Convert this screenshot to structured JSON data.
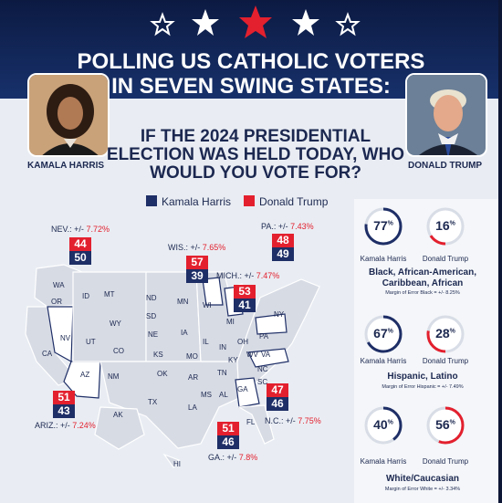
{
  "header": {
    "title_line1": "POLLING US CATHOLIC VOTERS",
    "title_line2": "IN SEVEN SWING STATES:"
  },
  "candidates": {
    "left_name": "KAMALA HARRIS",
    "right_name": "DONALD TRUMP"
  },
  "question": {
    "line1": "IF THE 2024 PRESIDENTIAL",
    "line2": "ELECTION WAS HELD TODAY, WHO",
    "line3": "WOULD YOU VOTE FOR?"
  },
  "legend": {
    "harris": "Kamala Harris",
    "trump": "Donald Trump",
    "harris_color": "#1e2e66",
    "trump_color": "#e3202e"
  },
  "states": {
    "nev": {
      "label": "NEV.: +/-",
      "moe": "7.72%",
      "trump": "44",
      "harris": "50"
    },
    "wis": {
      "label": "WIS.: +/-",
      "moe": "7.65%",
      "trump": "57",
      "harris": "39"
    },
    "pa": {
      "label": "PA.: +/-",
      "moe": "7.43%",
      "trump": "48",
      "harris": "49"
    },
    "mich": {
      "label": "MICH.: +/-",
      "moe": "7.47%",
      "trump": "53",
      "harris": "41"
    },
    "ariz": {
      "label": "ARIZ.: +/-",
      "moe": "7.24%",
      "trump": "51",
      "harris": "43"
    },
    "nc": {
      "label": "N.C.: +/-",
      "moe": "7.75%",
      "trump": "47",
      "harris": "46"
    },
    "ga": {
      "label": "GA.: +/-",
      "moe": "7.8%",
      "trump": "51",
      "harris": "46"
    }
  },
  "map_labels": [
    "WA",
    "OR",
    "CA",
    "NV",
    "ID",
    "MT",
    "WY",
    "UT",
    "AZ",
    "CO",
    "NM",
    "ND",
    "SD",
    "NE",
    "KS",
    "OK",
    "TX",
    "MN",
    "IA",
    "MO",
    "AR",
    "LA",
    "WI",
    "IL",
    "MI",
    "IN",
    "OH",
    "KY",
    "TN",
    "MS",
    "AL",
    "GA",
    "FL",
    "SC",
    "NC",
    "VA",
    "WV",
    "PA",
    "NY",
    "AK",
    "HI"
  ],
  "demographics": [
    {
      "harris": "77",
      "trump": "16",
      "unit": "%",
      "harris_label": "Kamala Harris",
      "trump_label": "Donald Trump",
      "group_line1": "Black, African-American,",
      "group_line2": "Caribbean, African",
      "moe": "Margin of Error Black = +/- 8.25%"
    },
    {
      "harris": "67",
      "trump": "28",
      "unit": "%",
      "harris_label": "Kamala Harris",
      "trump_label": "Donald Trump",
      "group_line1": "Hispanic, Latino",
      "group_line2": "",
      "moe": "Margin of Error Hispanic = +/- 7.49%"
    },
    {
      "harris": "40",
      "trump": "56",
      "unit": "%",
      "harris_label": "Kamala Harris",
      "trump_label": "Donald Trump",
      "group_line1": "White/Caucasian",
      "group_line2": "",
      "moe": "Margin of Error White = +/- 3.34%"
    }
  ]
}
